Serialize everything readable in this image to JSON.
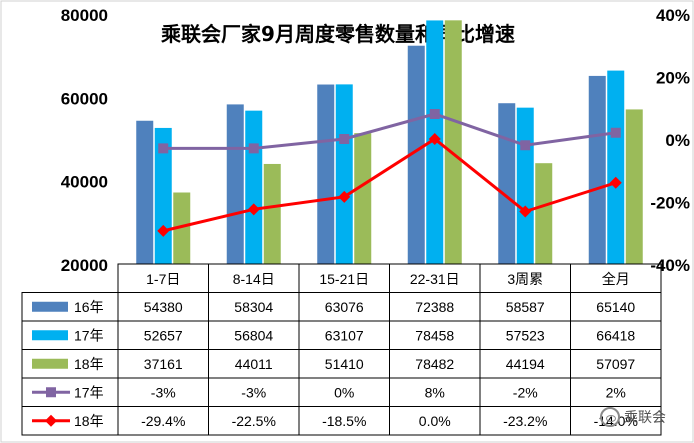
{
  "chart_data": {
    "type": "bar",
    "title": "乘联会厂家9月周度零售数量和同比增速",
    "categories": [
      "1-7日",
      "8-14日",
      "15-21日",
      "22-31日",
      "3周累",
      "全月"
    ],
    "y_left": {
      "ylim": [
        20000,
        80000
      ],
      "ticks": [
        "20000",
        "40000",
        "60000",
        "80000"
      ]
    },
    "y_right": {
      "ylim": [
        -40,
        40
      ],
      "ticks": [
        "-40%",
        "-20%",
        "0%",
        "20%",
        "40%"
      ]
    },
    "bar_series": [
      {
        "name": "16年",
        "color": "#4f81bd",
        "values": [
          54380,
          58304,
          63076,
          72388,
          58587,
          65140
        ]
      },
      {
        "name": "17年",
        "color": "#00b0f0",
        "values": [
          52657,
          56804,
          63107,
          78458,
          57523,
          66418
        ]
      },
      {
        "name": "18年",
        "color": "#9bbb59",
        "values": [
          37161,
          44011,
          51410,
          78482,
          44194,
          57097
        ]
      }
    ],
    "line_series": [
      {
        "name": "17年",
        "color": "#8064a2",
        "marker": "square",
        "values": [
          -3,
          -3,
          0,
          8,
          -2,
          2
        ]
      },
      {
        "name": "18年",
        "color": "#ff0000",
        "marker": "diamond",
        "values": [
          -29.4,
          -22.5,
          -18.5,
          0.0,
          -23.2,
          -14.0
        ]
      }
    ],
    "table_rows": [
      {
        "label": "16年",
        "cells": [
          "54380",
          "58304",
          "63076",
          "72388",
          "58587",
          "65140"
        ]
      },
      {
        "label": "17年",
        "cells": [
          "52657",
          "56804",
          "63107",
          "78458",
          "57523",
          "66418"
        ]
      },
      {
        "label": "18年",
        "cells": [
          "37161",
          "44011",
          "51410",
          "78482",
          "44194",
          "57097"
        ]
      },
      {
        "label": "17年",
        "cells": [
          "-3%",
          "-3%",
          "0%",
          "8%",
          "-2%",
          "2%"
        ]
      },
      {
        "label": "18年",
        "cells": [
          "-29.4%",
          "-22.5%",
          "-18.5%",
          "0.0%",
          "-23.2%",
          "-14.0%"
        ]
      }
    ],
    "grid": false,
    "legend_placement": "table-left"
  },
  "watermark": {
    "text": "乘联会"
  }
}
